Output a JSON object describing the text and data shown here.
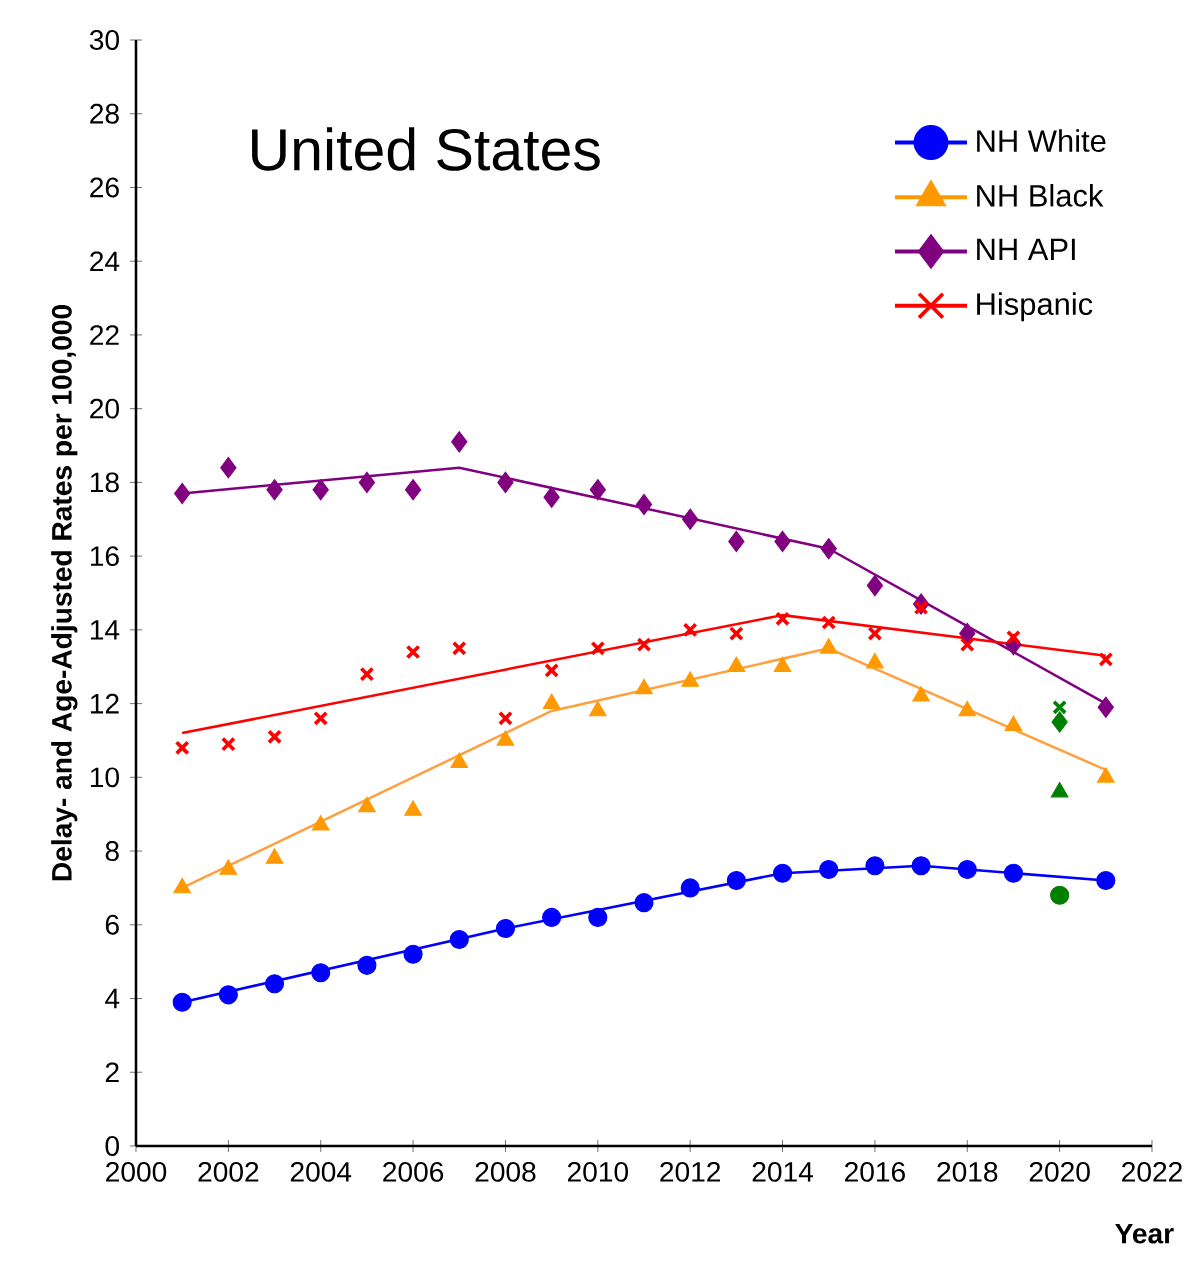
{
  "chart_data": {
    "type": "line",
    "title": "United States",
    "xlabel": "Year",
    "ylabel": "Delay- and Age-Adjusted Rates per 100,000",
    "xlim": [
      2000,
      2022
    ],
    "xticks": [
      2000,
      2002,
      2004,
      2006,
      2008,
      2010,
      2012,
      2014,
      2016,
      2018,
      2020,
      2022
    ],
    "ylim": [
      0,
      30
    ],
    "yticks": [
      0,
      2,
      4,
      6,
      8,
      10,
      12,
      14,
      16,
      18,
      20,
      22,
      24,
      26,
      28,
      30
    ],
    "grid": false,
    "legend": "top right",
    "series": [
      {
        "name": "NH White",
        "type": "scatter",
        "marker": "circle",
        "color": "#0000ff",
        "x": [
          2001,
          2002,
          2003,
          2004,
          2005,
          2006,
          2007,
          2008,
          2009,
          2010,
          2011,
          2012,
          2013,
          2014,
          2015,
          2016,
          2017,
          2018,
          2019,
          2021
        ],
        "values": [
          3.9,
          4.1,
          4.4,
          4.7,
          4.9,
          5.2,
          5.6,
          5.9,
          6.2,
          6.2,
          6.6,
          7.0,
          7.2,
          7.4,
          7.5,
          7.6,
          7.6,
          7.5,
          7.4,
          7.2
        ]
      },
      {
        "name": "NH Black",
        "type": "scatter",
        "marker": "triangle",
        "color": "#ff9900",
        "x": [
          2001,
          2002,
          2003,
          2004,
          2005,
          2006,
          2007,
          2008,
          2009,
          2010,
          2011,
          2012,
          2013,
          2014,
          2015,
          2016,
          2017,
          2018,
          2019,
          2021
        ],
        "values": [
          7.0,
          7.5,
          7.8,
          8.7,
          9.2,
          9.1,
          10.4,
          11.0,
          12.0,
          11.8,
          12.4,
          12.6,
          13.0,
          13.0,
          13.5,
          13.1,
          12.2,
          11.8,
          11.4,
          10.0
        ]
      },
      {
        "name": "NH API",
        "type": "scatter",
        "marker": "diamond",
        "color": "#800080",
        "x": [
          2001,
          2002,
          2003,
          2004,
          2005,
          2006,
          2007,
          2008,
          2009,
          2010,
          2011,
          2012,
          2013,
          2014,
          2015,
          2016,
          2017,
          2018,
          2019,
          2021
        ],
        "values": [
          17.7,
          18.4,
          17.8,
          17.8,
          18.0,
          17.8,
          19.1,
          18.0,
          17.6,
          17.8,
          17.4,
          17.0,
          16.4,
          16.4,
          16.2,
          15.2,
          14.7,
          13.9,
          13.6,
          11.9
        ]
      },
      {
        "name": "Hispanic",
        "type": "scatter",
        "marker": "cross",
        "color": "#ff0000",
        "x": [
          2001,
          2002,
          2003,
          2004,
          2005,
          2006,
          2007,
          2008,
          2009,
          2010,
          2011,
          2012,
          2013,
          2014,
          2015,
          2016,
          2017,
          2018,
          2019,
          2021
        ],
        "values": [
          10.8,
          10.9,
          11.1,
          11.6,
          12.8,
          13.4,
          13.5,
          11.6,
          12.9,
          13.5,
          13.6,
          14.0,
          13.9,
          14.3,
          14.2,
          13.9,
          14.6,
          13.6,
          13.8,
          13.2
        ]
      },
      {
        "color": "#0000ff",
        "x": [
          2001,
          2008,
          2014,
          2017,
          2021
        ],
        "values": [
          3.9,
          5.9,
          7.4,
          7.6,
          7.2
        ]
      },
      {
        "color": "#ffa040",
        "x": [
          2001,
          2009,
          2015,
          2021
        ],
        "values": [
          7.0,
          11.8,
          13.5,
          10.2
        ]
      },
      {
        "color": "#800080",
        "x": [
          2001,
          2007,
          2015,
          2021
        ],
        "values": [
          17.7,
          18.4,
          16.2,
          12.0
        ]
      },
      {
        "color": "#ff0000",
        "x": [
          2001,
          2014,
          2021
        ],
        "values": [
          11.2,
          14.4,
          13.3
        ]
      },
      {
        "type": "scatter",
        "marker": "circle",
        "color": "#008000",
        "x": [
          2020
        ],
        "values": [
          6.8
        ]
      },
      {
        "type": "scatter",
        "marker": "triangle",
        "color": "#008000",
        "x": [
          2020
        ],
        "values": [
          9.6
        ]
      },
      {
        "type": "scatter",
        "marker": "diamond",
        "color": "#008000",
        "x": [
          2020
        ],
        "values": [
          11.5
        ]
      },
      {
        "type": "scatter",
        "marker": "cross",
        "color": "#008000",
        "x": [
          2020
        ],
        "values": [
          11.9
        ]
      }
    ]
  }
}
